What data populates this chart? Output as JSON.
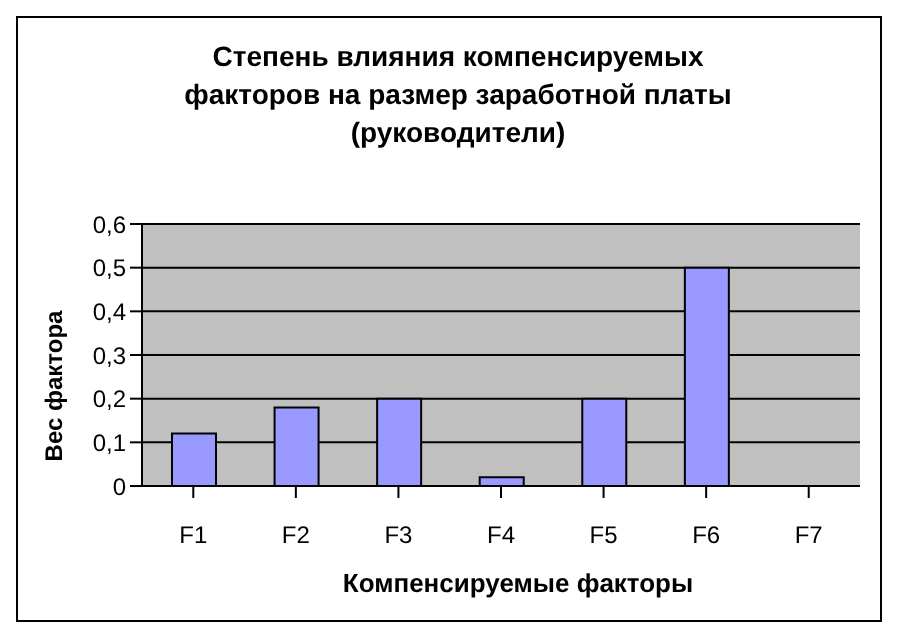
{
  "chart_data": {
    "type": "bar",
    "title": "Степень влияния компенсируемых факторов на размер заработной платы (руководители)",
    "xlabel": "Компенсируемые факторы",
    "ylabel": "Вес фактора",
    "categories": [
      "F1",
      "F2",
      "F3",
      "F4",
      "F5",
      "F6",
      "F7"
    ],
    "values": [
      0.12,
      0.18,
      0.2,
      0.02,
      0.2,
      0.5,
      null
    ],
    "color": "#9999ff",
    "ylim": [
      0,
      0.6
    ],
    "yticks": [
      0,
      {
        "value": 0.1,
        "label": "0,1"
      },
      {
        "value": 0.2,
        "label": "0,2"
      },
      {
        "value": 0.3,
        "label": "0,3"
      },
      {
        "value": 0.4,
        "label": "0,4"
      },
      {
        "value": 0.5,
        "label": "0,5"
      },
      {
        "value": 0.6,
        "label": "0,6"
      }
    ],
    "grid": "y"
  }
}
